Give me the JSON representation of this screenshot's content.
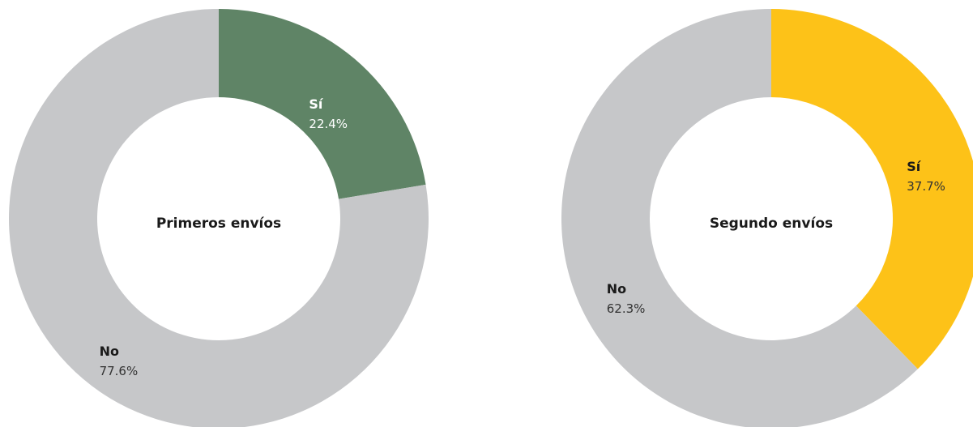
{
  "chart_data": [
    {
      "type": "pie",
      "donut": true,
      "title": "Primeros envíos",
      "categories": [
        "Sí",
        "No"
      ],
      "values": [
        22.4,
        77.6
      ],
      "value_labels": [
        "22.4%",
        "77.6%"
      ],
      "colors": [
        "#5f8466",
        "#c6c7c9"
      ]
    },
    {
      "type": "pie",
      "donut": true,
      "title": "Segundo envíos",
      "categories": [
        "Sí",
        "No"
      ],
      "values": [
        37.7,
        62.3
      ],
      "value_labels": [
        "37.7%",
        "62.3%"
      ],
      "colors": [
        "#fdc218",
        "#c6c7c9"
      ]
    }
  ]
}
